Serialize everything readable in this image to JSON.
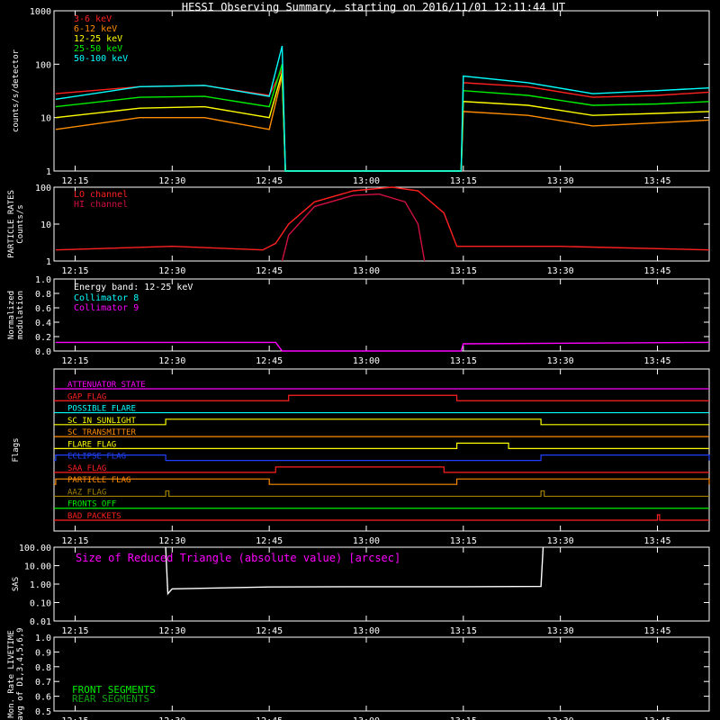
{
  "title": "HESSI Observing Summary, starting on 2016/11/01 12:11:44 UT",
  "time_ticks": [
    "12:15",
    "12:30",
    "12:45",
    "13:00",
    "13:15",
    "13:30",
    "13:45"
  ],
  "chart_data": [
    {
      "type": "line",
      "ylabel": "counts/s/detector",
      "yscale": "log",
      "ylim": [
        1,
        1000
      ],
      "y_ticks": [
        "1",
        "10",
        "100",
        "1000"
      ],
      "x_range": [
        "12:11:44",
        "13:53:00"
      ],
      "series": [
        {
          "name": "3-6 keV",
          "color": "#ff2020",
          "points": [
            [
              "12:12",
              28
            ],
            [
              "12:25",
              38
            ],
            [
              "12:35",
              40
            ],
            [
              "12:45",
              26
            ],
            [
              "12:47",
              80
            ],
            [
              "12:47:30",
              1
            ],
            [
              "13:14:40",
              1
            ],
            [
              "13:15",
              45
            ],
            [
              "13:25",
              38
            ],
            [
              "13:35",
              24
            ],
            [
              "13:45",
              26
            ],
            [
              "13:53",
              30
            ]
          ]
        },
        {
          "name": "6-12 keV",
          "color": "#ff8c00",
          "points": [
            [
              "12:12",
              6
            ],
            [
              "12:25",
              10
            ],
            [
              "12:35",
              10
            ],
            [
              "12:45",
              6
            ],
            [
              "12:47",
              60
            ],
            [
              "12:47:30",
              1
            ],
            [
              "13:14:40",
              1
            ],
            [
              "13:15",
              13
            ],
            [
              "13:25",
              11
            ],
            [
              "13:35",
              7
            ],
            [
              "13:45",
              8
            ],
            [
              "13:53",
              9
            ]
          ]
        },
        {
          "name": "12-25 keV",
          "color": "#ffff00",
          "points": [
            [
              "12:12",
              10
            ],
            [
              "12:25",
              15
            ],
            [
              "12:35",
              16
            ],
            [
              "12:45",
              10
            ],
            [
              "12:47",
              70
            ],
            [
              "12:47:30",
              1
            ],
            [
              "13:14:40",
              1
            ],
            [
              "13:15",
              20
            ],
            [
              "13:25",
              17
            ],
            [
              "13:35",
              11
            ],
            [
              "13:45",
              12
            ],
            [
              "13:53",
              13
            ]
          ]
        },
        {
          "name": "25-50 keV",
          "color": "#00ee00",
          "points": [
            [
              "12:12",
              16
            ],
            [
              "12:25",
              24
            ],
            [
              "12:35",
              25
            ],
            [
              "12:45",
              16
            ],
            [
              "12:47",
              100
            ],
            [
              "12:47:30",
              1
            ],
            [
              "13:14:40",
              1
            ],
            [
              "13:15",
              32
            ],
            [
              "13:25",
              26
            ],
            [
              "13:35",
              17
            ],
            [
              "13:45",
              18
            ],
            [
              "13:53",
              20
            ]
          ]
        },
        {
          "name": "50-100 keV",
          "color": "#00ffff",
          "points": [
            [
              "12:12",
              22
            ],
            [
              "12:25",
              38
            ],
            [
              "12:35",
              40
            ],
            [
              "12:45",
              25
            ],
            [
              "12:47",
              220
            ],
            [
              "12:47:30",
              1
            ],
            [
              "13:14:40",
              1
            ],
            [
              "13:15",
              60
            ],
            [
              "13:25",
              45
            ],
            [
              "13:35",
              28
            ],
            [
              "13:45",
              32
            ],
            [
              "13:53",
              36
            ]
          ]
        }
      ]
    },
    {
      "type": "line",
      "ylabel": "PARTICLE RATES Counts/s",
      "yscale": "log",
      "ylim": [
        1,
        100
      ],
      "y_ticks": [
        "1",
        "10",
        "100"
      ],
      "series": [
        {
          "name": "LO channel",
          "color": "#ff2020",
          "points": [
            [
              "12:12",
              2
            ],
            [
              "12:30",
              2.5
            ],
            [
              "12:44",
              2
            ],
            [
              "12:46",
              3
            ],
            [
              "12:48",
              10
            ],
            [
              "12:52",
              40
            ],
            [
              "12:58",
              80
            ],
            [
              "13:04",
              100
            ],
            [
              "13:08",
              80
            ],
            [
              "13:12",
              20
            ],
            [
              "13:14",
              2.5
            ],
            [
              "13:30",
              2.5
            ],
            [
              "13:53",
              2
            ]
          ]
        },
        {
          "name": "HI channel",
          "color": "#d01040",
          "points": [
            [
              "12:47",
              1
            ],
            [
              "12:48",
              5
            ],
            [
              "12:52",
              30
            ],
            [
              "12:58",
              60
            ],
            [
              "13:02",
              65
            ],
            [
              "13:06",
              40
            ],
            [
              "13:08",
              10
            ],
            [
              "13:09",
              1
            ]
          ]
        }
      ]
    },
    {
      "type": "line",
      "ylabel": "Normalized modulation",
      "ylim": [
        0.0,
        1.0
      ],
      "y_ticks": [
        "0.0",
        "0.2",
        "0.4",
        "0.6",
        "0.8",
        "1.0"
      ],
      "legend_title": "Energy band: 12-25 keV",
      "series": [
        {
          "name": "Collimator 8",
          "color": "#00ffff",
          "points": []
        },
        {
          "name": "Collimator 9",
          "color": "#ff00ff",
          "points": [
            [
              "12:12",
              0.12
            ],
            [
              "12:46",
              0.12
            ],
            [
              "12:47",
              0.0
            ],
            [
              "13:14:40",
              0.0
            ],
            [
              "13:15",
              0.1
            ],
            [
              "13:53",
              0.12
            ]
          ]
        }
      ]
    },
    {
      "type": "flags",
      "ylabel": "Flags",
      "flags": [
        {
          "name": "ATTENUATOR STATE",
          "color": "#ff00ff",
          "on": []
        },
        {
          "name": "GAP FLAG",
          "color": "#ff2020",
          "on": [
            [
              "12:48",
              "13:14"
            ]
          ]
        },
        {
          "name": "POSSIBLE FLARE",
          "color": "#00ffff",
          "on": []
        },
        {
          "name": "SC IN SUNLIGHT",
          "color": "#ffff00",
          "on": [
            [
              "12:29",
              "13:27"
            ]
          ]
        },
        {
          "name": "SC TRANSMITTER",
          "color": "#ff8c00",
          "on": []
        },
        {
          "name": "FLARE FLAG",
          "color": "#ffff00",
          "on": [
            [
              "13:14",
              "13:22"
            ]
          ]
        },
        {
          "name": "ECLIPSE FLAG",
          "color": "#2040ff",
          "on": [
            [
              "12:12",
              "12:29"
            ],
            [
              "13:27",
              "13:53"
            ]
          ]
        },
        {
          "name": "SAA FLAG",
          "color": "#ff2020",
          "on": [
            [
              "12:46",
              "13:12"
            ]
          ]
        },
        {
          "name": "PARTICLE FLAG",
          "color": "#ff8c00",
          "on": [
            [
              "12:12",
              "12:45"
            ],
            [
              "13:14",
              "13:53"
            ]
          ]
        },
        {
          "name": "AAZ FLAG",
          "color": "#a08000",
          "on": [
            [
              "12:29",
              "12:29:30"
            ],
            [
              "13:27",
              "13:27:30"
            ]
          ]
        },
        {
          "name": "FRONTS OFF",
          "color": "#00ee00",
          "on": []
        },
        {
          "name": "BAD PACKETS",
          "color": "#ff2020",
          "on": [
            [
              "13:45",
              "13:45:20"
            ]
          ]
        }
      ]
    },
    {
      "type": "line",
      "ylabel": "SAS",
      "yscale": "log",
      "ylim": [
        0.01,
        100
      ],
      "y_ticks": [
        "0.01",
        "0.10",
        "1.00",
        "10.00",
        "100.00"
      ],
      "annotation": "Size of Reduced Triangle (absolute value) [arcsec]",
      "series": [
        {
          "name": "",
          "color": "#ffffff",
          "points": [
            [
              "12:29",
              100
            ],
            [
              "12:29:20",
              0.3
            ],
            [
              "12:30",
              0.55
            ],
            [
              "12:45",
              0.7
            ],
            [
              "13:00",
              0.72
            ],
            [
              "13:15",
              0.72
            ],
            [
              "13:27",
              0.75
            ],
            [
              "13:27:20",
              100
            ]
          ]
        }
      ]
    },
    {
      "type": "line",
      "ylabel": "Mon. Rate LIVETIME avg of D1,3,4,5,6,9",
      "ylim": [
        0.5,
        1.0
      ],
      "y_ticks": [
        "0.5",
        "0.6",
        "0.7",
        "0.8",
        "0.9",
        "1.0"
      ],
      "series": [
        {
          "name": "FRONT SEGMENTS",
          "color": "#00ee00",
          "points": []
        },
        {
          "name": "REAR SEGMENTS",
          "color": "#10a010",
          "points": []
        }
      ]
    }
  ]
}
